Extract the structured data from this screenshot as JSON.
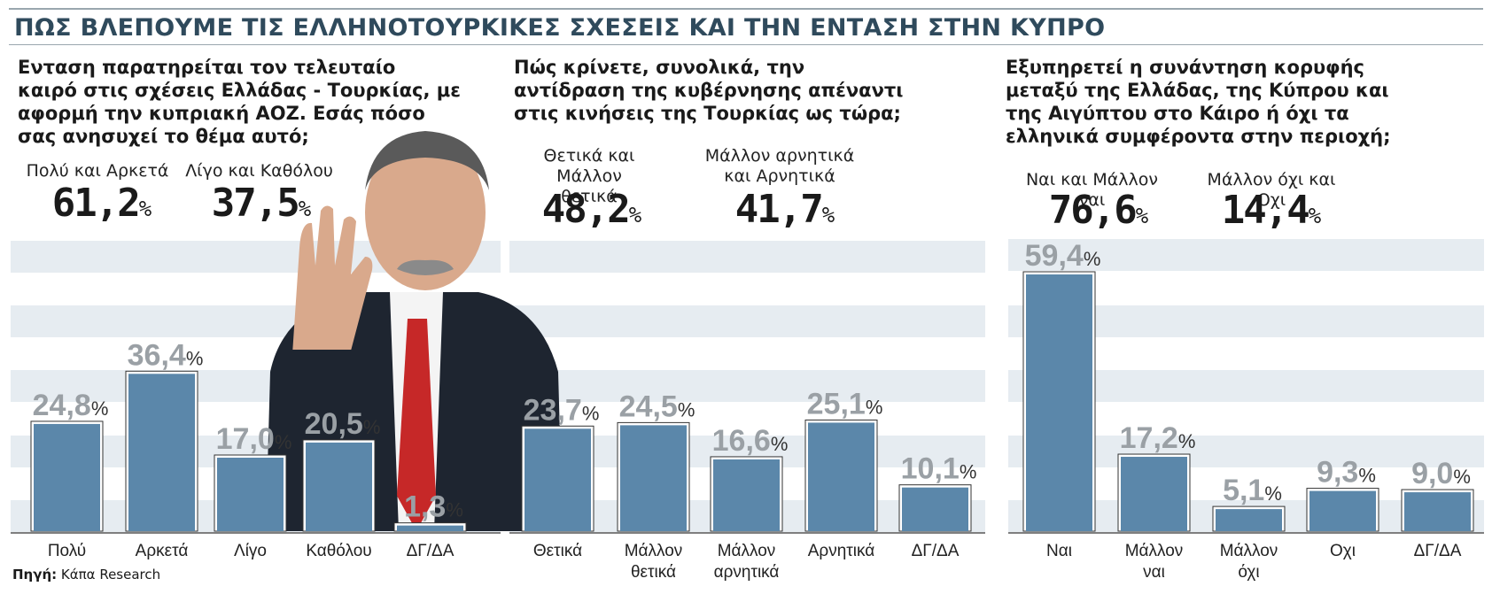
{
  "title": "ΠΩΣ ΒΛΕΠΟΥΜΕ ΤΙΣ ΕΛΛΗΝΟΤΟΥΡΚΙΚΕΣ ΣΧΕΣΕΙΣ ΚΑΙ ΤΗΝ ΕΝΤΑΣΗ ΣΤΗΝ ΚΥΠΡΟ",
  "source": {
    "label": "Πηγή:",
    "value": "Κάπα Research"
  },
  "colors": {
    "bar": "#5b87aa",
    "band": "#e6ecf1",
    "value": "#9aa0a5",
    "title": "#2f4a5c"
  },
  "panels": [
    {
      "question": "Ενταση παρατηρείται τον τελευταίο καιρό στις σχέσεις Ελλάδας - Τουρκίας, με αφορμή την κυπριακή ΑΟΖ. Εσάς πόσο σας ανησυχεί το θέμα αυτό;",
      "groups": [
        {
          "label": "Πολύ και Αρκετά",
          "value": "61,2",
          "pct": "%"
        },
        {
          "label": "Λίγο και Καθόλου",
          "value": "37,5",
          "pct": "%"
        }
      ]
    },
    {
      "question": "Πώς κρίνετε, συνολικά, την αντίδραση της κυβέρνησης απέναντι στις κινήσεις της Τουρκίας ως τώρα;",
      "groups": [
        {
          "label": "Θετικά και Μάλλον θετικά",
          "value": "48,2",
          "pct": "%"
        },
        {
          "label": "Μάλλον αρνητικά και Αρνητικά",
          "value": "41,7",
          "pct": "%"
        }
      ]
    },
    {
      "question": "Εξυπηρετεί η συνάντηση κορυφής μεταξύ της Ελλάδας, της Κύπρου και της Αιγύπτου στο Κάιρο ή όχι τα ελληνικά συμφέροντα στην περιοχή;",
      "groups": [
        {
          "label": "Ναι και Μάλλον ναι",
          "value": "76,6",
          "pct": "%"
        },
        {
          "label": "Μάλλον όχι και Οχι",
          "value": "14,4",
          "pct": "%"
        }
      ]
    }
  ],
  "chart_data": [
    {
      "type": "bar",
      "categories": [
        "Πολύ",
        "Αρκετά",
        "Λίγο",
        "Καθόλου",
        "ΔΓ/ΔΑ"
      ],
      "values": [
        24.8,
        36.4,
        17.0,
        20.5,
        1.3
      ],
      "labels": [
        "24,8",
        "36,4",
        "17,0",
        "20,5",
        "1,3"
      ],
      "unit": "%"
    },
    {
      "type": "bar",
      "categories": [
        "Θετικά",
        "Μάλλον θετικά",
        "Μάλλον αρνητικά",
        "Αρνητικά",
        "ΔΓ/ΔΑ"
      ],
      "values": [
        23.7,
        24.5,
        16.6,
        25.1,
        10.1
      ],
      "labels": [
        "23,7",
        "24,5",
        "16,6",
        "25,1",
        "10,1"
      ],
      "unit": "%"
    },
    {
      "type": "bar",
      "categories": [
        "Ναι",
        "Μάλλον ναι",
        "Μάλλον όχι",
        "Οχι",
        "ΔΓ/ΔΑ"
      ],
      "values": [
        59.4,
        17.2,
        5.1,
        9.3,
        9.0
      ],
      "labels": [
        "59,4",
        "17,2",
        "5,1",
        "9,3",
        "9,0"
      ],
      "unit": "%"
    }
  ]
}
